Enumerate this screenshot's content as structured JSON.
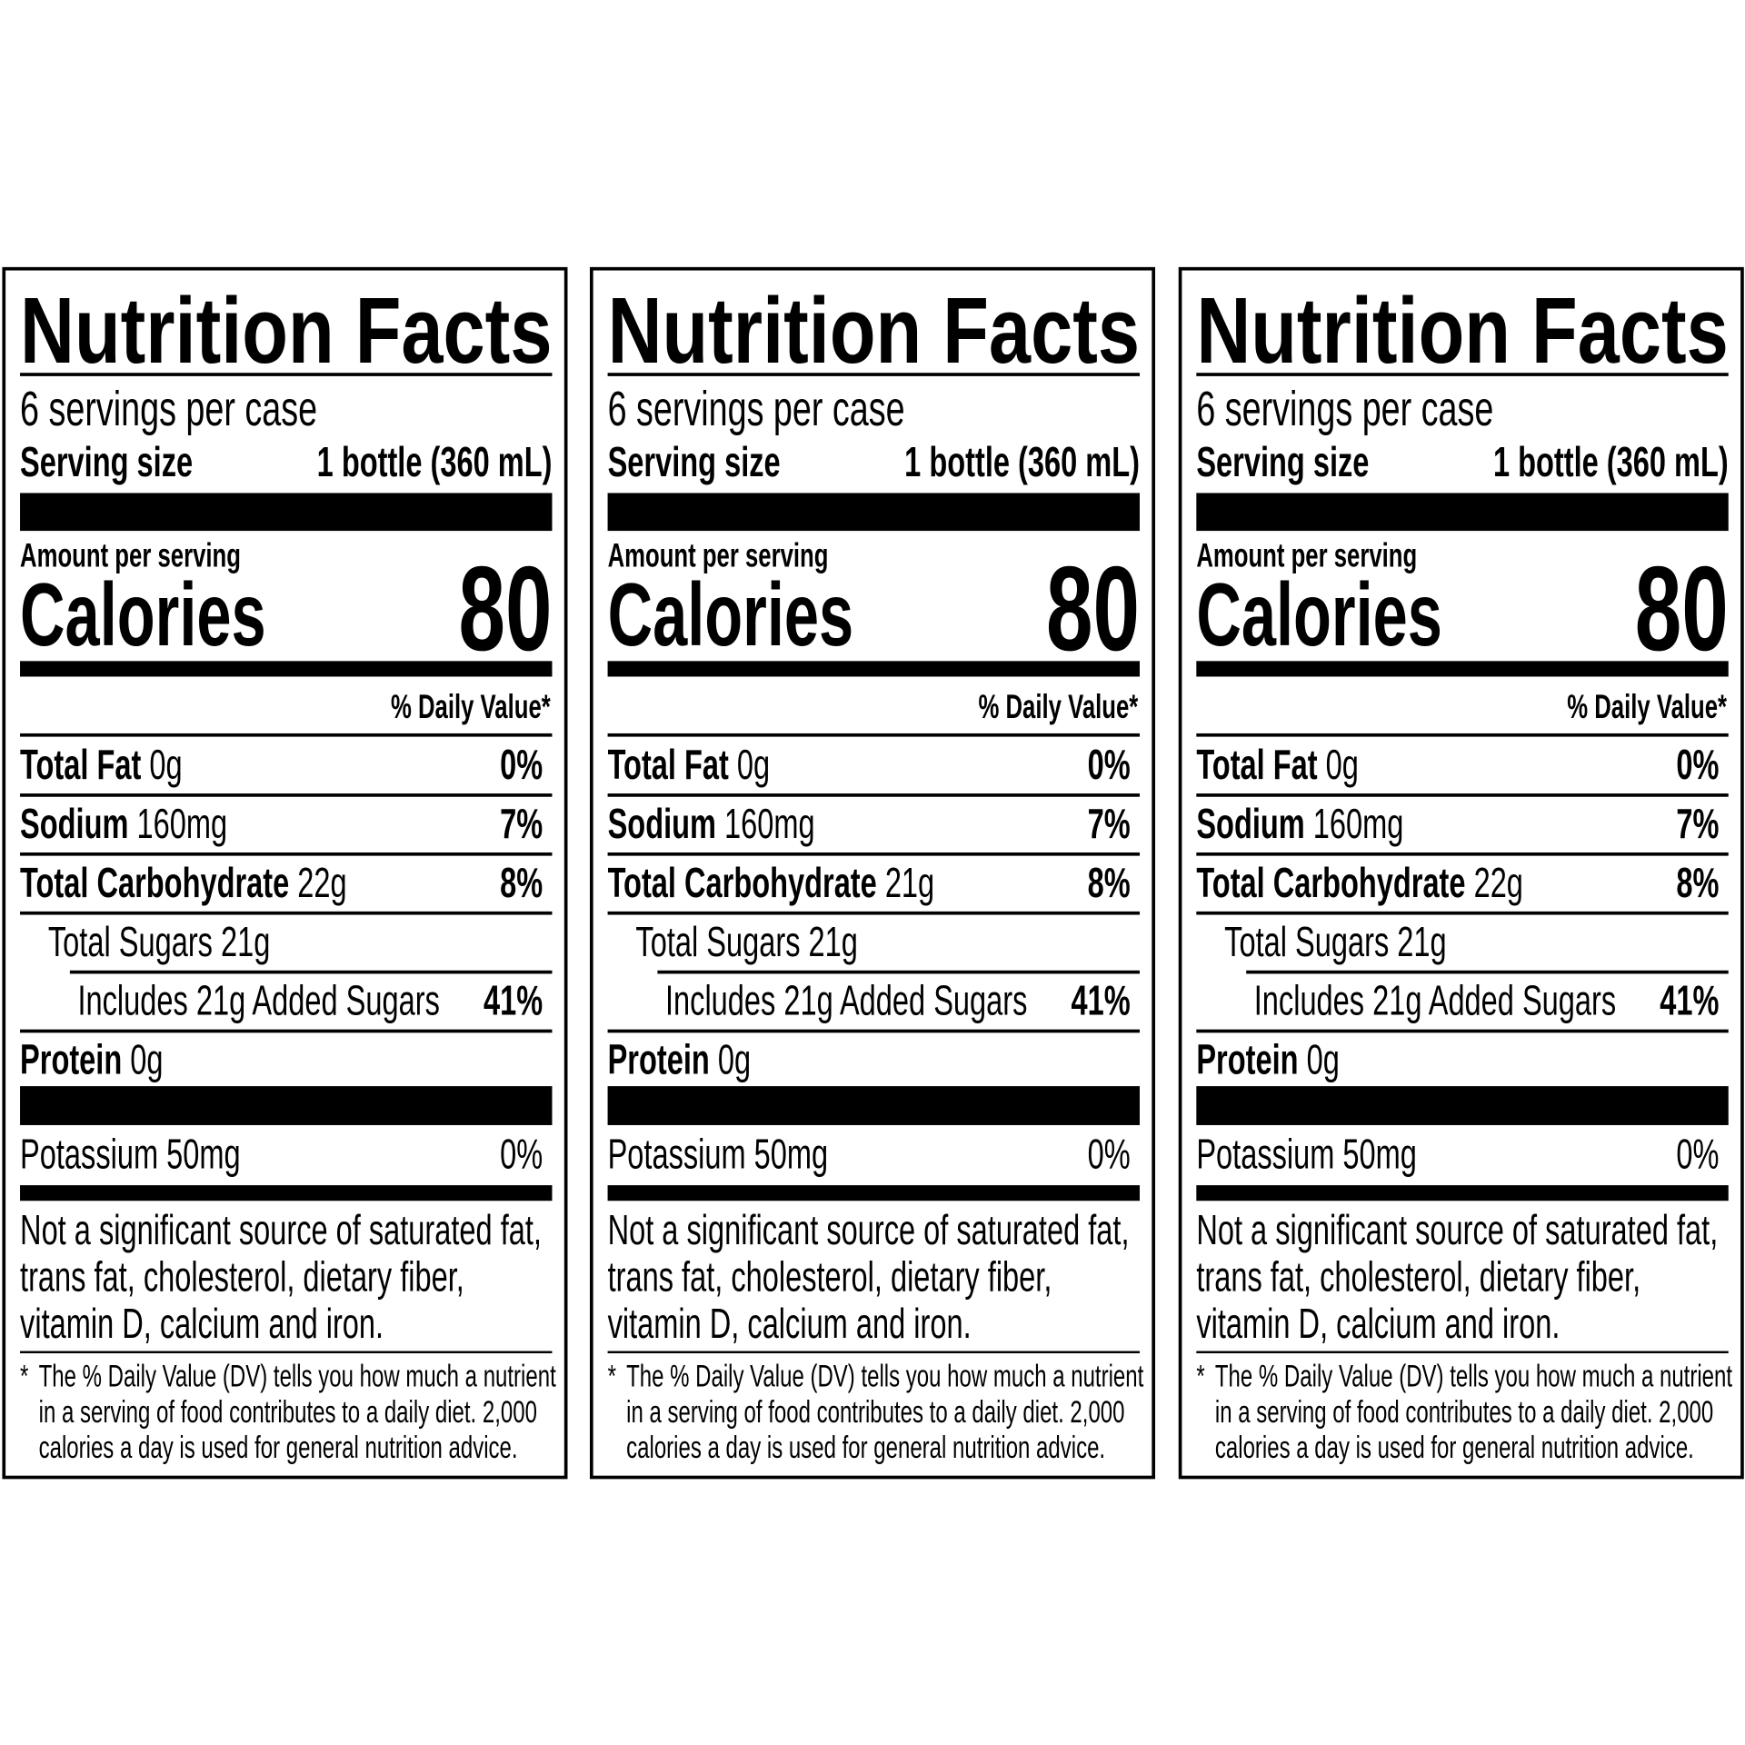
{
  "labels": [
    {
      "title": "Nutrition Facts",
      "servings": "6 servings per case",
      "serving_size_label": "Serving size",
      "serving_size_value": "1 bottle (360 mL)",
      "amount_per_serving": "Amount per serving",
      "calories_label": "Calories",
      "calories_value": "80",
      "daily_value_header": "% Daily Value*",
      "nutrients": [
        {
          "name": "Total Fat",
          "amount": "0g",
          "dv": "0%"
        },
        {
          "name": "Sodium",
          "amount": "160mg",
          "dv": "7%"
        },
        {
          "name": "Total Carbohydrate",
          "amount": "22g",
          "dv": "8%"
        },
        {
          "name": "Total Sugars 21g"
        },
        {
          "name": "Includes 21g Added Sugars",
          "dv": "41%"
        },
        {
          "name": "Protein",
          "amount": "0g"
        }
      ],
      "potassium": {
        "name": "Potassium 50mg",
        "dv": "0%"
      },
      "note": [
        "Not a significant source of saturated fat,",
        "trans fat, cholesterol, dietary fiber,",
        "vitamin D, calcium and iron."
      ],
      "footnote": [
        "*",
        "The % Daily Value (DV) tells you how much a nutrient",
        "in a serving of food contributes to a daily diet. 2,000",
        "calories a day is used for general nutrition advice."
      ]
    },
    {
      "title": "Nutrition Facts",
      "servings": "6 servings per case",
      "serving_size_label": "Serving size",
      "serving_size_value": "1 bottle (360 mL)",
      "amount_per_serving": "Amount per serving",
      "calories_label": "Calories",
      "calories_value": "80",
      "daily_value_header": "% Daily Value*",
      "nutrients": [
        {
          "name": "Total Fat",
          "amount": "0g",
          "dv": "0%"
        },
        {
          "name": "Sodium",
          "amount": "160mg",
          "dv": "7%"
        },
        {
          "name": "Total Carbohydrate",
          "amount": "21g",
          "dv": "8%"
        },
        {
          "name": "Total Sugars 21g"
        },
        {
          "name": "Includes 21g Added Sugars",
          "dv": "41%"
        },
        {
          "name": "Protein",
          "amount": "0g"
        }
      ],
      "potassium": {
        "name": "Potassium 50mg",
        "dv": "0%"
      },
      "note": [
        "Not a significant source of saturated fat,",
        "trans fat, cholesterol, dietary fiber,",
        "vitamin D, calcium and iron."
      ],
      "footnote": [
        "*",
        "The % Daily Value (DV) tells you how much a nutrient",
        "in a serving of food contributes to a daily diet. 2,000",
        "calories a day is used for general nutrition advice."
      ]
    },
    {
      "title": "Nutrition Facts",
      "servings": "6 servings per case",
      "serving_size_label": "Serving size",
      "serving_size_value": "1 bottle (360 mL)",
      "amount_per_serving": "Amount per serving",
      "calories_label": "Calories",
      "calories_value": "80",
      "daily_value_header": "% Daily Value*",
      "nutrients": [
        {
          "name": "Total Fat",
          "amount": "0g",
          "dv": "0%"
        },
        {
          "name": "Sodium",
          "amount": "160mg",
          "dv": "7%"
        },
        {
          "name": "Total Carbohydrate",
          "amount": "22g",
          "dv": "8%"
        },
        {
          "name": "Total Sugars 21g"
        },
        {
          "name": "Includes 21g Added Sugars",
          "dv": "41%"
        },
        {
          "name": "Protein",
          "amount": "0g"
        }
      ],
      "potassium": {
        "name": "Potassium 50mg",
        "dv": "0%"
      },
      "note": [
        "Not a significant source of saturated fat,",
        "trans fat, cholesterol, dietary fiber,",
        "vitamin D, calcium and iron."
      ],
      "footnote": [
        "*",
        "The % Daily Value (DV) tells you how much a nutrient",
        "in a serving of food contributes to a daily diet. 2,000",
        "calories a day is used for general nutrition advice."
      ]
    }
  ]
}
